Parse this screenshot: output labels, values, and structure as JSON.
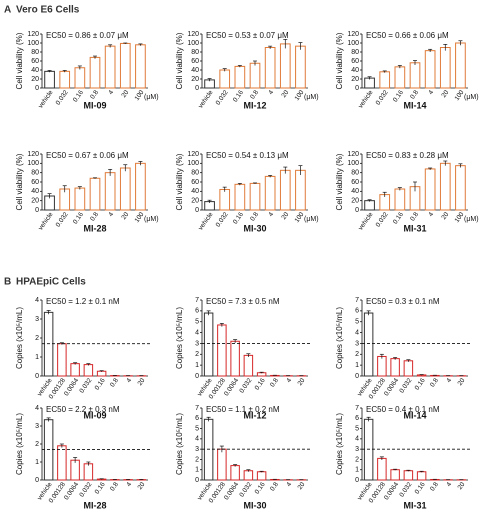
{
  "panels": [
    {
      "label": "A",
      "title": "Vero E6 Cells"
    },
    {
      "label": "B",
      "title": "HPAEpiC Cells"
    }
  ],
  "chart_data": [
    {
      "type": "bar",
      "title": "MI-09",
      "annotation": "EC50 = 0.86 ± 0.07 μM",
      "ylabel": "Cell viability (%)",
      "x_unit": "(μM)",
      "categories": [
        "vehicle",
        "0.032",
        "0.16",
        "0.8",
        "4",
        "20",
        "100"
      ],
      "values": [
        37,
        37,
        45,
        68,
        93,
        99,
        96
      ],
      "errors": [
        2,
        2,
        4,
        3,
        3,
        1,
        2
      ],
      "colors": [
        "#333333",
        "#e07b39",
        "#e07b39",
        "#e07b39",
        "#e07b39",
        "#e07b39",
        "#e07b39"
      ],
      "ylim": [
        0,
        120
      ],
      "yticks": [
        0,
        20,
        40,
        60,
        80,
        100,
        120
      ]
    },
    {
      "type": "bar",
      "title": "MI-12",
      "annotation": "EC50 = 0.53 ± 0.07 μM",
      "ylabel": "Cell viability (%)",
      "x_unit": "(μM)",
      "categories": [
        "vehicle",
        "0.032",
        "0.16",
        "0.8",
        "4",
        "20",
        "100"
      ],
      "values": [
        18,
        40,
        48,
        55,
        90,
        98,
        93
      ],
      "errors": [
        3,
        3,
        2,
        5,
        3,
        10,
        8
      ],
      "colors": [
        "#333333",
        "#e07b39",
        "#e07b39",
        "#e07b39",
        "#e07b39",
        "#e07b39",
        "#e07b39"
      ],
      "ylim": [
        0,
        120
      ],
      "yticks": [
        0,
        20,
        40,
        60,
        80,
        100,
        120
      ]
    },
    {
      "type": "bar",
      "title": "MI-14",
      "annotation": "EC50 = 0.66 ± 0.06 μM",
      "ylabel": "Cell viability (%)",
      "x_unit": "(μM)",
      "categories": [
        "vehicle",
        "0.032",
        "0.16",
        "0.8",
        "4",
        "20",
        "100"
      ],
      "values": [
        22,
        36,
        47,
        56,
        83,
        90,
        100
      ],
      "errors": [
        3,
        2,
        3,
        5,
        3,
        7,
        5
      ],
      "colors": [
        "#333333",
        "#e07b39",
        "#e07b39",
        "#e07b39",
        "#e07b39",
        "#e07b39",
        "#e07b39"
      ],
      "ylim": [
        0,
        120
      ],
      "yticks": [
        0,
        20,
        40,
        60,
        80,
        100,
        120
      ]
    },
    {
      "type": "bar",
      "title": "MI-28",
      "annotation": "EC50 = 0.67 ± 0.06 μM",
      "ylabel": "Cell viability (%)",
      "x_unit": "(μM)",
      "categories": [
        "vehicle",
        "0.032",
        "0.16",
        "0.8",
        "4",
        "20",
        "100"
      ],
      "values": [
        30,
        45,
        47,
        68,
        80,
        90,
        100
      ],
      "errors": [
        5,
        7,
        3,
        1,
        7,
        7,
        4
      ],
      "colors": [
        "#333333",
        "#e07b39",
        "#e07b39",
        "#e07b39",
        "#e07b39",
        "#e07b39",
        "#e07b39"
      ],
      "ylim": [
        0,
        120
      ],
      "yticks": [
        0,
        20,
        40,
        60,
        80,
        100,
        120
      ]
    },
    {
      "type": "bar",
      "title": "MI-30",
      "annotation": "EC50 = 0.54 ± 0.13 μM",
      "ylabel": "Cell viability (%)",
      "x_unit": "(μM)",
      "categories": [
        "vehicle",
        "0.032",
        "0.16",
        "0.8",
        "4",
        "20",
        "100"
      ],
      "values": [
        18,
        44,
        55,
        57,
        72,
        85,
        85
      ],
      "errors": [
        3,
        5,
        2,
        1,
        2,
        7,
        10
      ],
      "colors": [
        "#333333",
        "#e07b39",
        "#e07b39",
        "#e07b39",
        "#e07b39",
        "#e07b39",
        "#e07b39"
      ],
      "ylim": [
        0,
        120
      ],
      "yticks": [
        0,
        20,
        40,
        60,
        80,
        100,
        120
      ]
    },
    {
      "type": "bar",
      "title": "MI-31",
      "annotation": "EC50 = 0.83 ± 0.28 μM",
      "ylabel": "Cell viability (%)",
      "x_unit": "(μM)",
      "categories": [
        "vehicle",
        "0.032",
        "0.16",
        "0.8",
        "4",
        "20",
        "100"
      ],
      "values": [
        20,
        33,
        45,
        50,
        88,
        100,
        95
      ],
      "errors": [
        2,
        5,
        3,
        10,
        2,
        5,
        4
      ],
      "colors": [
        "#333333",
        "#e07b39",
        "#e07b39",
        "#e07b39",
        "#e07b39",
        "#e07b39",
        "#e07b39"
      ],
      "ylim": [
        0,
        120
      ],
      "yticks": [
        0,
        20,
        40,
        60,
        80,
        100,
        120
      ]
    },
    {
      "type": "bar",
      "title": "MI-09",
      "annotation": "EC50 = 1.2 ± 0.1 nM",
      "ylabel": "Copies (x10⁵/mL)",
      "categories": [
        "vehicle",
        "0.00128",
        "0.0064",
        "0.032",
        "0.16",
        "0.8",
        "4",
        "20"
      ],
      "values": [
        3.35,
        1.7,
        0.65,
        0.6,
        0.25,
        0.02,
        0.01,
        0.01
      ],
      "errors": [
        0.1,
        0.05,
        0.05,
        0.05,
        0.03,
        0.01,
        0.01,
        0.01
      ],
      "colors": [
        "#333333",
        "#d62728",
        "#d62728",
        "#d62728",
        "#d62728",
        "#d62728",
        "#d62728",
        "#d62728"
      ],
      "threshold": 1.7,
      "ylim": [
        0,
        4
      ],
      "yticks": [
        0,
        1,
        2,
        3,
        4
      ]
    },
    {
      "type": "bar",
      "title": "MI-12",
      "annotation": "EC50 = 7.3 ± 0.5 nM",
      "ylabel": "Copies (x10⁵/mL)",
      "categories": [
        "vehicle",
        "0.00128",
        "0.0064",
        "0.032",
        "0.16",
        "0.8",
        "4",
        "20"
      ],
      "values": [
        5.8,
        4.7,
        3.2,
        1.9,
        0.3,
        0.05,
        0.02,
        0.02
      ],
      "errors": [
        0.2,
        0.15,
        0.15,
        0.15,
        0.05,
        0.02,
        0.01,
        0.01
      ],
      "colors": [
        "#333333",
        "#d62728",
        "#d62728",
        "#d62728",
        "#d62728",
        "#d62728",
        "#d62728",
        "#d62728"
      ],
      "threshold": 3,
      "ylim": [
        0,
        7
      ],
      "yticks": [
        0,
        1,
        2,
        3,
        4,
        5,
        6,
        7
      ]
    },
    {
      "type": "bar",
      "title": "MI-14",
      "annotation": "EC50 = 0.3 ± 0.1 nM",
      "ylabel": "Copies (x10⁵/mL)",
      "categories": [
        "vehicle",
        "0.00128",
        "0.0064",
        "0.032",
        "0.16",
        "0.8",
        "4",
        "20"
      ],
      "values": [
        5.8,
        1.8,
        1.6,
        1.4,
        0.1,
        0.05,
        0.02,
        0.02
      ],
      "errors": [
        0.2,
        0.2,
        0.1,
        0.1,
        0.03,
        0.02,
        0.01,
        0.01
      ],
      "colors": [
        "#333333",
        "#d62728",
        "#d62728",
        "#d62728",
        "#d62728",
        "#d62728",
        "#d62728",
        "#d62728"
      ],
      "threshold": 3,
      "ylim": [
        0,
        7
      ],
      "yticks": [
        0,
        1,
        2,
        3,
        4,
        5,
        6,
        7
      ]
    },
    {
      "type": "bar",
      "title": "MI-28",
      "annotation": "EC50 = 2.2 ± 0.3 nM",
      "ylabel": "Copies (x10⁵/mL)",
      "categories": [
        "vehicle",
        "0.00128",
        "0.0064",
        "0.032",
        "0.16",
        "0.8",
        "4",
        "20"
      ],
      "values": [
        3.35,
        1.9,
        1.1,
        0.9,
        0.05,
        0.02,
        0.02,
        0.02
      ],
      "errors": [
        0.1,
        0.1,
        0.15,
        0.1,
        0.02,
        0.01,
        0.01,
        0.01
      ],
      "colors": [
        "#333333",
        "#d62728",
        "#d62728",
        "#d62728",
        "#d62728",
        "#d62728",
        "#d62728",
        "#d62728"
      ],
      "threshold": 1.7,
      "ylim": [
        0,
        4
      ],
      "yticks": [
        0,
        1,
        2,
        3,
        4
      ]
    },
    {
      "type": "bar",
      "title": "MI-30",
      "annotation": "EC50 = 1.1 ± 0.2 nM",
      "ylabel": "Copies (x10⁵/mL)",
      "categories": [
        "vehicle",
        "0.00128",
        "0.0064",
        "0.032",
        "0.16",
        "0.8",
        "4",
        "20"
      ],
      "values": [
        5.9,
        3.0,
        1.4,
        0.9,
        0.8,
        0.05,
        0.02,
        0.02
      ],
      "errors": [
        0.2,
        0.3,
        0.1,
        0.1,
        0.05,
        0.02,
        0.01,
        0.01
      ],
      "colors": [
        "#333333",
        "#d62728",
        "#d62728",
        "#d62728",
        "#d62728",
        "#d62728",
        "#d62728",
        "#d62728"
      ],
      "threshold": 3,
      "ylim": [
        0,
        7
      ],
      "yticks": [
        0,
        1,
        2,
        3,
        4,
        5,
        6,
        7
      ]
    },
    {
      "type": "bar",
      "title": "MI-31",
      "annotation": "EC50 = 0.4 ± 0.1 nM",
      "ylabel": "Copies (x10⁵/mL)",
      "categories": [
        "vehicle",
        "0.00128",
        "0.0064",
        "0.032",
        "0.16",
        "0.8",
        "4",
        "20"
      ],
      "values": [
        5.9,
        2.1,
        1.0,
        0.9,
        0.8,
        0.05,
        0.02,
        0.02
      ],
      "errors": [
        0.2,
        0.15,
        0.05,
        0.05,
        0.05,
        0.02,
        0.01,
        0.01
      ],
      "colors": [
        "#333333",
        "#d62728",
        "#d62728",
        "#d62728",
        "#d62728",
        "#d62728",
        "#d62728",
        "#d62728"
      ],
      "threshold": 3,
      "ylim": [
        0,
        7
      ],
      "yticks": [
        0,
        1,
        2,
        3,
        4,
        5,
        6,
        7
      ]
    }
  ]
}
